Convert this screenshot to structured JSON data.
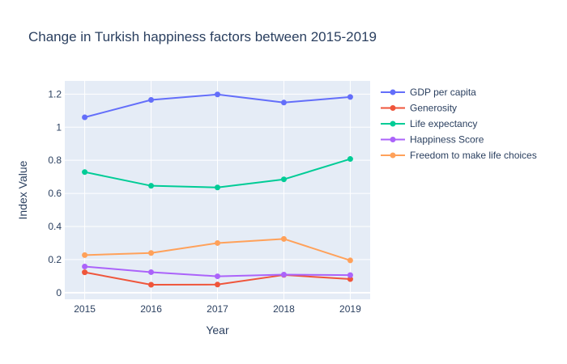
{
  "chart_data": {
    "type": "line",
    "title": "Change in Turkish happiness factors between 2015-2019",
    "xlabel": "Year",
    "ylabel": "Index Value",
    "x": [
      2015,
      2016,
      2017,
      2018,
      2019
    ],
    "xlim": [
      2014.7,
      2019.3
    ],
    "ylim": [
      -0.04,
      1.28
    ],
    "yticks": [
      0,
      0.2,
      0.4,
      0.6,
      0.8,
      1,
      1.2
    ],
    "ytick_labels": [
      "0",
      "0.2",
      "0.4",
      "0.6",
      "0.8",
      "1",
      "1.2"
    ],
    "grid": true,
    "legend_placement": "right",
    "series": [
      {
        "name": "GDP per capita",
        "color": "#636efa",
        "values": [
          1.06,
          1.165,
          1.198,
          1.149,
          1.183
        ]
      },
      {
        "name": "Generosity",
        "color": "#ef553b",
        "values": [
          0.123,
          0.048,
          0.049,
          0.107,
          0.082
        ]
      },
      {
        "name": "Life expectancy",
        "color": "#00cc96",
        "values": [
          0.729,
          0.646,
          0.636,
          0.685,
          0.808
        ]
      },
      {
        "name": "Happiness Score",
        "color": "#ab63fa",
        "values": [
          0.158,
          0.124,
          0.099,
          0.109,
          0.106
        ]
      },
      {
        "name": "Freedom to make life choices",
        "color": "#ffa15a",
        "values": [
          0.227,
          0.24,
          0.3,
          0.325,
          0.195
        ]
      }
    ]
  }
}
